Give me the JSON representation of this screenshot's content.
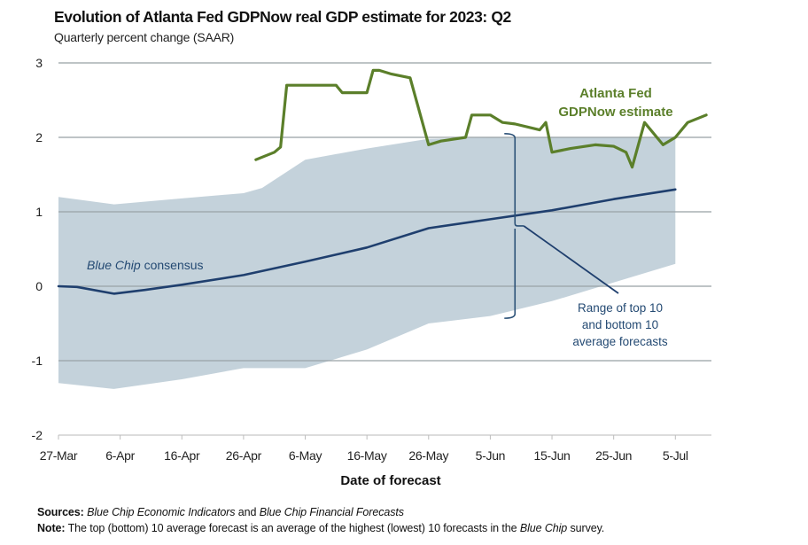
{
  "chart_data": {
    "type": "line",
    "title": "Evolution of Atlanta Fed GDPNow real GDP estimate for 2023: Q2",
    "subtitle": "Quarterly percent change (SAAR)",
    "xlabel": "Date of forecast",
    "ylabel": "",
    "x_unit": "days since 27-Mar",
    "xlim": [
      0,
      106
    ],
    "ylim": [
      -2,
      3
    ],
    "yticks": [
      3,
      2,
      1,
      0,
      -1,
      -2
    ],
    "ytick_labels": [
      "3",
      "2",
      "1",
      "0",
      "-1",
      "-2"
    ],
    "xticks": [
      0,
      10,
      20,
      30,
      40,
      50,
      60,
      70,
      80,
      90,
      100
    ],
    "xtick_labels": [
      "27-Mar",
      "6-Apr",
      "16-Apr",
      "26-Apr",
      "6-May",
      "16-May",
      "26-May",
      "5-Jun",
      "15-Jun",
      "25-Jun",
      "5-Jul"
    ],
    "grid": true,
    "series": [
      {
        "name": "Atlanta Fed GDPNow estimate",
        "kind": "line",
        "color": "#5b7f2a",
        "x": [
          32,
          35,
          36,
          37,
          45,
          46,
          50,
          51,
          52,
          54,
          57,
          60,
          62,
          66,
          67,
          70,
          72,
          74,
          78,
          79,
          80,
          83,
          87,
          90,
          92,
          93,
          95,
          98,
          100,
          102,
          105
        ],
        "values": [
          1.7,
          1.8,
          1.87,
          2.7,
          2.7,
          2.6,
          2.6,
          2.9,
          2.9,
          2.85,
          2.8,
          1.9,
          1.95,
          2.0,
          2.3,
          2.3,
          2.2,
          2.18,
          2.1,
          2.2,
          1.8,
          1.85,
          1.9,
          1.88,
          1.8,
          1.6,
          2.2,
          1.9,
          2.0,
          2.2,
          2.3
        ]
      },
      {
        "name": "Blue Chip consensus",
        "kind": "line",
        "color": "#1f3f6e",
        "x": [
          0,
          3,
          9,
          14,
          20,
          30,
          40,
          50,
          60,
          70,
          80,
          90,
          100
        ],
        "values": [
          0.0,
          -0.01,
          -0.1,
          -0.05,
          0.02,
          0.15,
          0.33,
          0.52,
          0.78,
          0.9,
          1.02,
          1.17,
          1.3
        ]
      },
      {
        "name": "Range of top 10 and bottom 10 average forecasts",
        "kind": "band",
        "color": "#c4d2db",
        "x": [
          0,
          9,
          20,
          30,
          33,
          40,
          50,
          60,
          70,
          80,
          90,
          100
        ],
        "upper": [
          1.2,
          1.1,
          1.18,
          1.25,
          1.32,
          1.7,
          1.85,
          1.98,
          2.0,
          2.0,
          2.0,
          2.0
        ],
        "lower": [
          -1.3,
          -1.38,
          -1.25,
          -1.1,
          -1.1,
          -1.1,
          -0.85,
          -0.5,
          -0.4,
          -0.2,
          0.05,
          0.3
        ]
      }
    ],
    "annotations": {
      "gdpnow_label": [
        "Atlanta Fed",
        "GDPNow estimate"
      ],
      "bluechip_label_italic": "Blue Chip",
      "bluechip_label_rest": " consensus",
      "range_label": [
        "Range of top 10",
        "and bottom 10",
        "average forecasts"
      ],
      "range_bracket_x": 74,
      "range_bracket_top": 2.05,
      "range_bracket_bottom": -0.43
    }
  },
  "footer": {
    "sources_label": "Sources:",
    "sources_italic_1": "Blue Chip Economic Indicators",
    "sources_mid": " and ",
    "sources_italic_2": "Blue Chip Financial Forecasts",
    "note_label": "Note:",
    "note_text_1": " The top (bottom) 10 average forecast is an average of the highest (lowest) 10 forecasts in the ",
    "note_italic": "Blue Chip",
    "note_text_2": " survey."
  }
}
